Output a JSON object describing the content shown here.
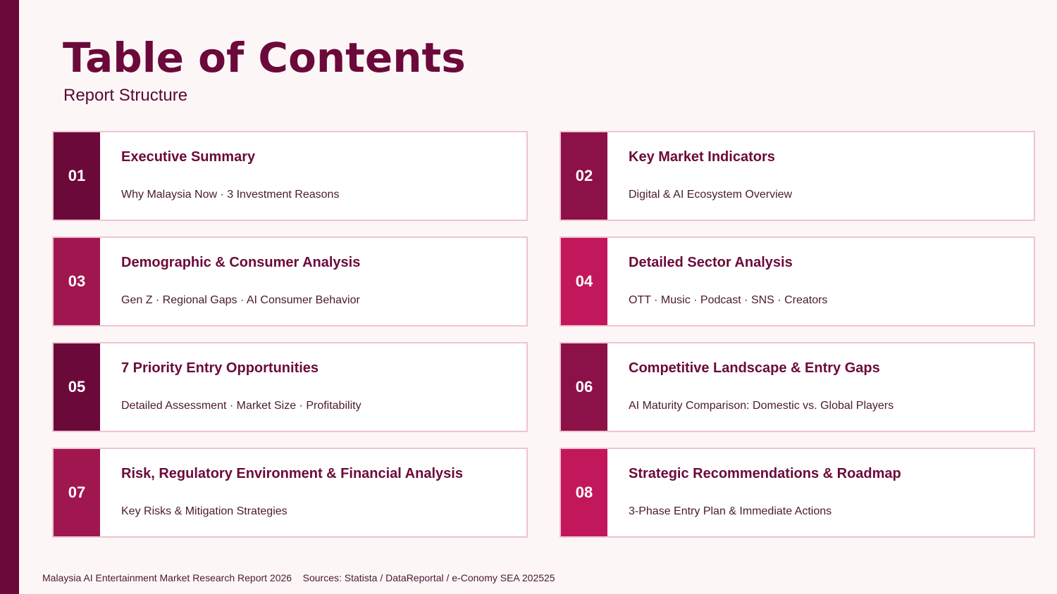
{
  "header": {
    "title": "Table of Contents",
    "subtitle": "Report Structure"
  },
  "items": [
    {
      "number": "01",
      "title": "Executive Summary",
      "subtitle": "Why Malaysia Now · 3 Investment Reasons"
    },
    {
      "number": "02",
      "title": "Key Market Indicators",
      "subtitle": "Digital & AI Ecosystem Overview"
    },
    {
      "number": "03",
      "title": "Demographic & Consumer Analysis",
      "subtitle": "Gen Z · Regional Gaps · AI Consumer Behavior"
    },
    {
      "number": "04",
      "title": "Detailed Sector Analysis",
      "subtitle": "OTT · Music · Podcast · SNS · Creators"
    },
    {
      "number": "05",
      "title": "7 Priority Entry Opportunities",
      "subtitle": "Detailed Assessment · Market Size · Profitability"
    },
    {
      "number": "06",
      "title": "Competitive Landscape & Entry Gaps",
      "subtitle": "AI Maturity Comparison: Domestic vs. Global Players"
    },
    {
      "number": "07",
      "title": "Risk, Regulatory Environment & Financial Analysis",
      "subtitle": "Key Risks & Mitigation Strategies"
    },
    {
      "number": "08",
      "title": "Strategic Recommendations & Roadmap",
      "subtitle": "3-Phase Entry Plan & Immediate Actions"
    }
  ],
  "footer": {
    "report": "Malaysia AI Entertainment Market Research Report 2026",
    "sources": "Sources: Statista / DataReportal / e-Conomy SEA 202525"
  }
}
